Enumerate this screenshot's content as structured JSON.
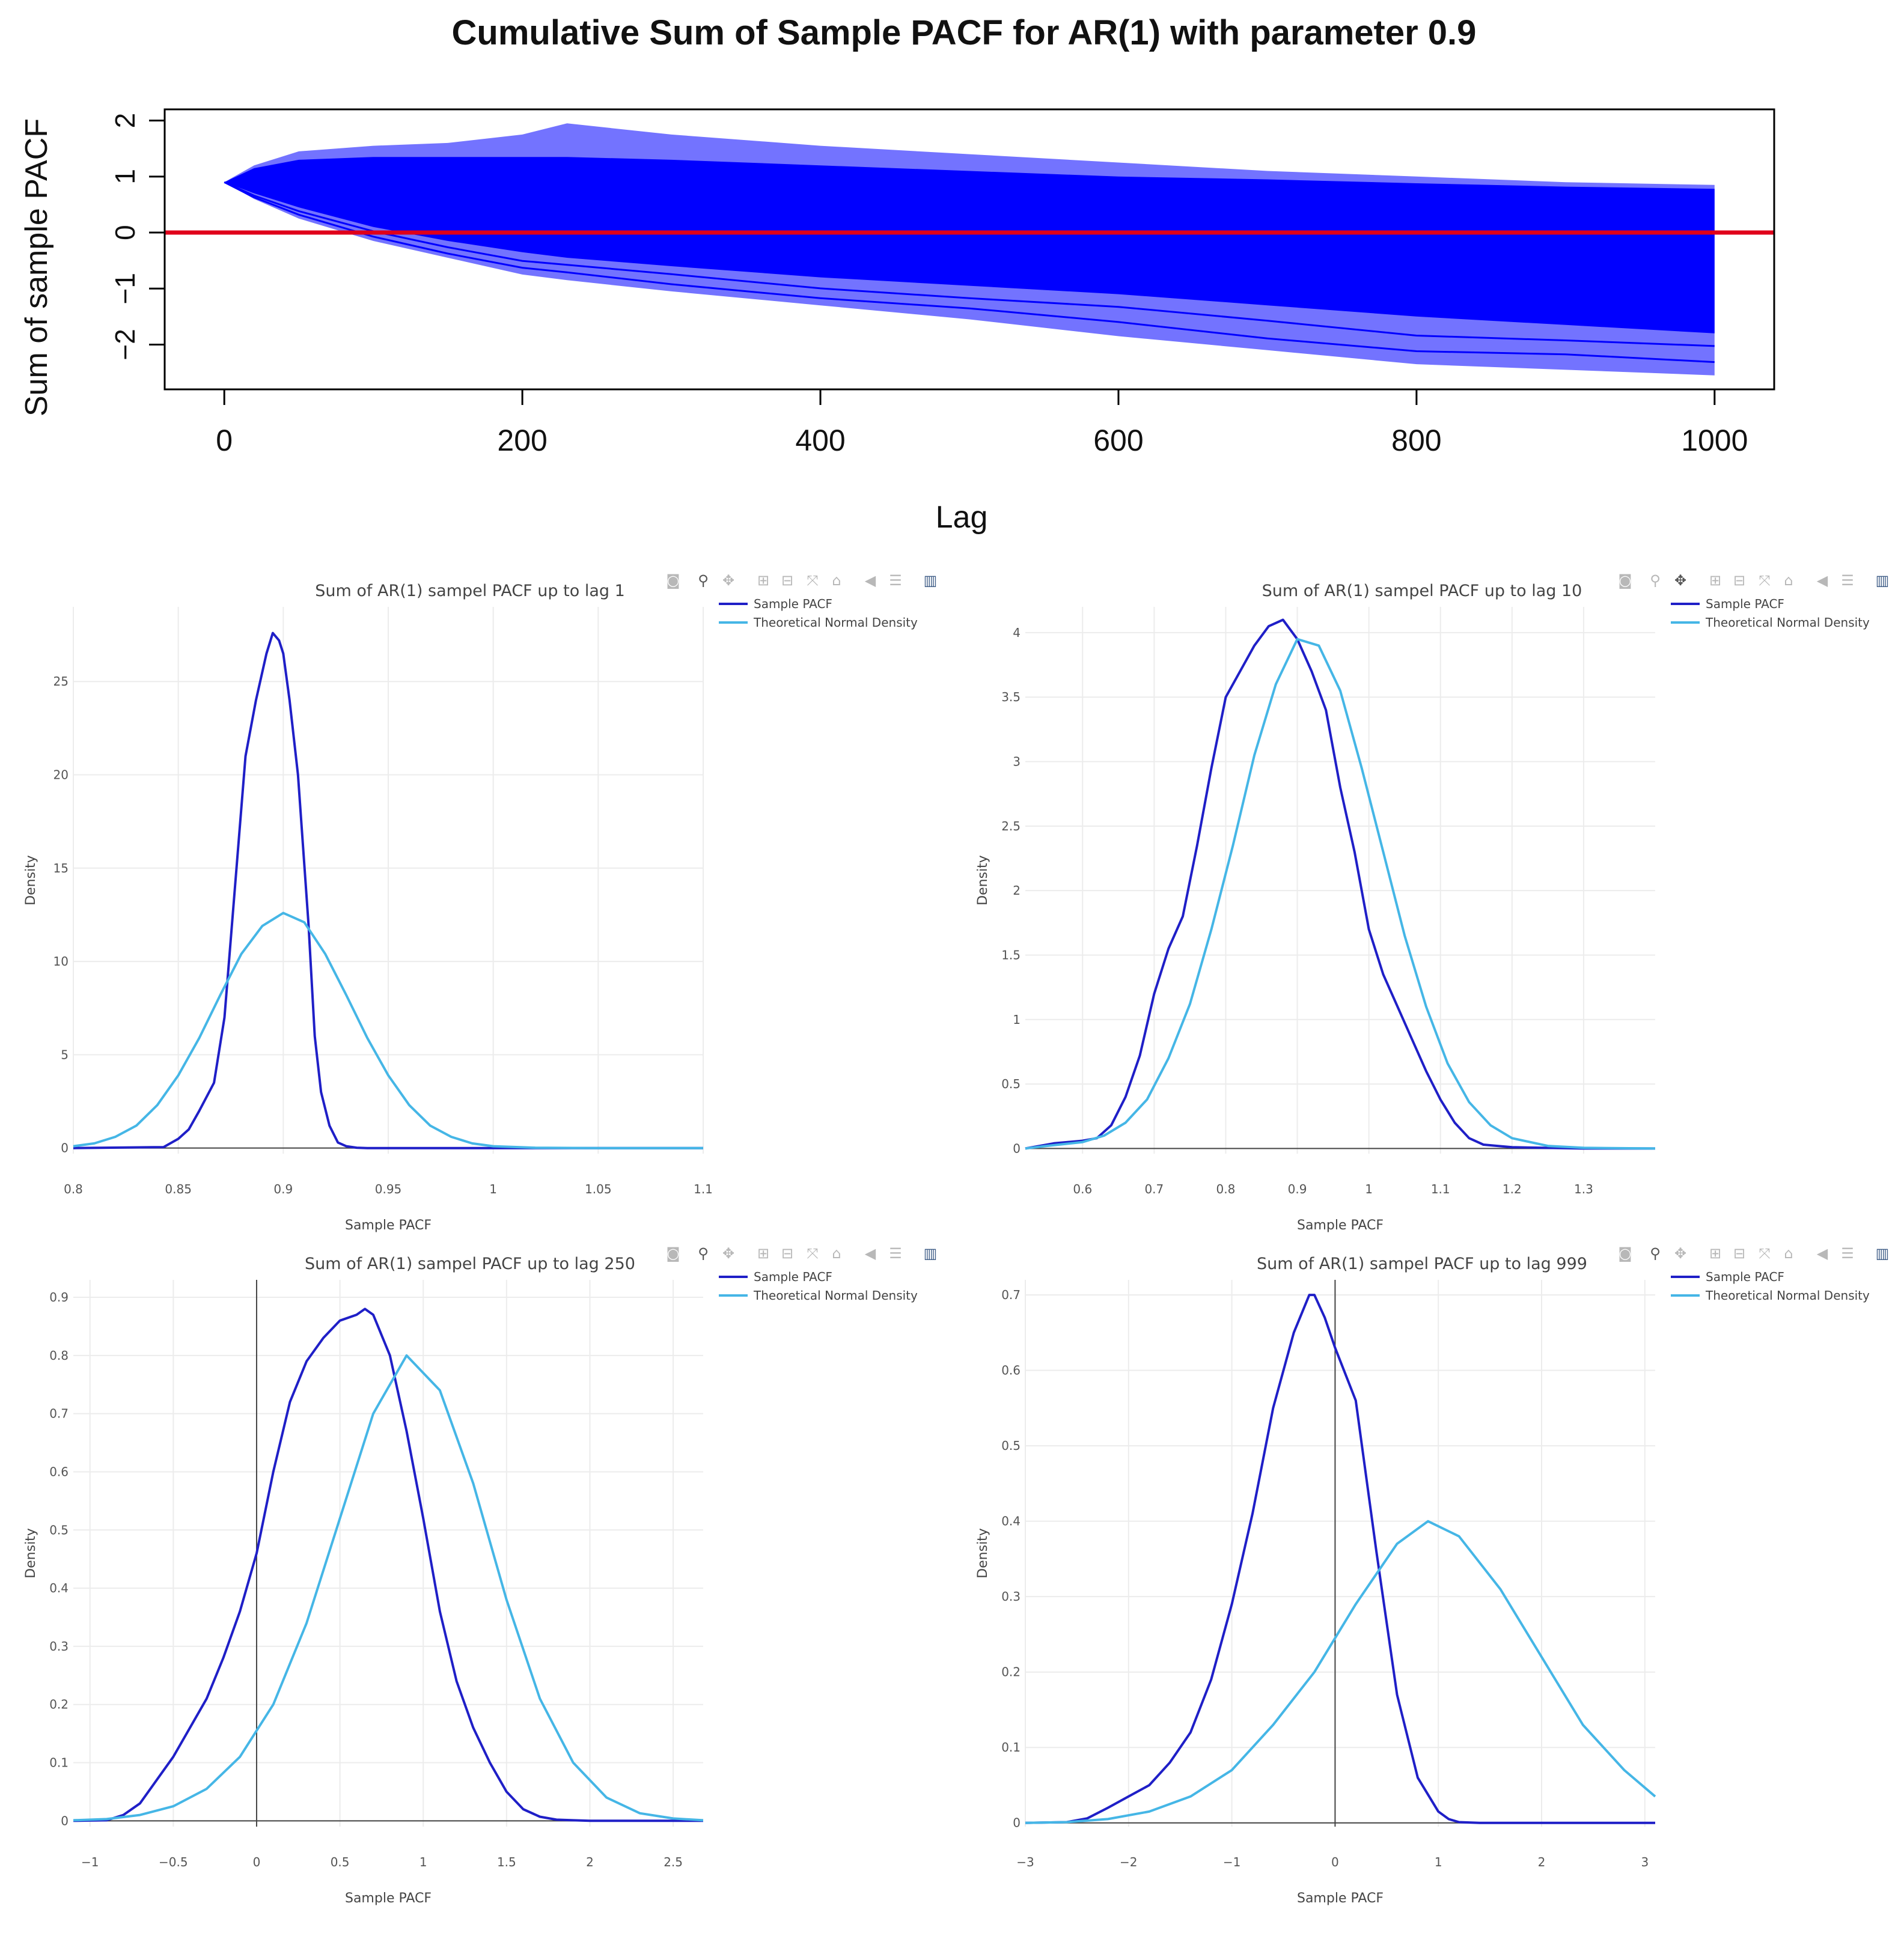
{
  "main": {
    "title": "Cumulative Sum of Sample PACF for AR(1) with parameter 0.9",
    "xlabel": "Lag",
    "ylabel": "Sum of sample PACF"
  },
  "colors": {
    "band": "#0000ff",
    "zero_line": "#e0001b",
    "sample": "#1f1fc7",
    "normal": "#45b6e6",
    "grid": "#ececec",
    "axis_text": "#555555"
  },
  "legend": {
    "sample": "Sample PACF",
    "normal": "Theoretical Normal Density"
  },
  "modebar_icons": [
    "camera-icon",
    "zoom-icon",
    "pan-icon",
    "zoom-in-icon",
    "zoom-out-icon",
    "autoscale-icon",
    "reset-axes-icon",
    "hover-closest-icon",
    "hover-compare-icon",
    "plotly-logo-icon"
  ],
  "chart_data": [
    {
      "type": "line",
      "title": "Cumulative Sum of Sample PACF for AR(1) with parameter 0.9",
      "xlabel": "Lag",
      "ylabel": "Sum of sample PACF",
      "x_ticks": [
        0,
        200,
        400,
        600,
        800,
        1000
      ],
      "y_ticks": [
        -2,
        -1,
        0,
        1,
        2
      ],
      "xlim": [
        -40,
        1040
      ],
      "ylim": [
        -2.8,
        2.2
      ],
      "reference_line_y": 0,
      "envelope": {
        "x": [
          0,
          20,
          50,
          100,
          150,
          200,
          230,
          300,
          400,
          500,
          600,
          700,
          800,
          900,
          1000
        ],
        "upper": [
          0.9,
          1.2,
          1.45,
          1.55,
          1.6,
          1.75,
          1.95,
          1.75,
          1.55,
          1.4,
          1.25,
          1.1,
          1.0,
          0.9,
          0.85
        ],
        "lower": [
          0.9,
          0.6,
          0.25,
          -0.15,
          -0.45,
          -0.75,
          -0.85,
          -1.05,
          -1.3,
          -1.55,
          -1.85,
          -2.1,
          -2.35,
          -2.45,
          -2.55
        ],
        "dense_upper": [
          0.9,
          1.15,
          1.3,
          1.35,
          1.35,
          1.35,
          1.35,
          1.3,
          1.2,
          1.1,
          1.0,
          0.95,
          0.88,
          0.82,
          0.78
        ],
        "dense_lower": [
          0.9,
          0.7,
          0.45,
          0.1,
          -0.15,
          -0.35,
          -0.45,
          -0.6,
          -0.8,
          -0.95,
          -1.1,
          -1.3,
          -1.5,
          -1.65,
          -1.8
        ]
      }
    },
    {
      "type": "line",
      "title": "Sum of AR(1) sampel PACF up to lag 1",
      "xlabel": "Sample PACF",
      "ylabel": "Density",
      "xlim": [
        0.8,
        1.1
      ],
      "ylim": [
        -0.3,
        29
      ],
      "x_ticks": [
        0.8,
        0.85,
        0.9,
        0.95,
        1,
        1.05,
        1.1
      ],
      "x_tick_labels": [
        "0.8",
        "0.85",
        "0.9",
        "0.95",
        "1",
        "1.05",
        "1.1"
      ],
      "y_ticks": [
        0,
        5,
        10,
        15,
        20,
        25
      ],
      "y_tick_labels": [
        "0",
        "5",
        "10",
        "15",
        "20",
        "25"
      ],
      "series": [
        {
          "name": "Sample PACF",
          "x": [
            0.8,
            0.843,
            0.85,
            0.855,
            0.86,
            0.867,
            0.872,
            0.877,
            0.882,
            0.887,
            0.892,
            0.895,
            0.898,
            0.9,
            0.903,
            0.907,
            0.912,
            0.915,
            0.918,
            0.922,
            0.926,
            0.93,
            0.935,
            0.94,
            1.1
          ],
          "y": [
            0,
            0.05,
            0.5,
            1.0,
            2.0,
            3.5,
            7,
            14,
            21,
            24,
            26.5,
            27.6,
            27.2,
            26.5,
            24,
            20,
            12,
            6,
            3.0,
            1.2,
            0.3,
            0.1,
            0.02,
            0,
            0
          ]
        },
        {
          "name": "Theoretical Normal Density",
          "x": [
            0.8,
            0.81,
            0.82,
            0.83,
            0.84,
            0.85,
            0.86,
            0.87,
            0.88,
            0.89,
            0.9,
            0.91,
            0.92,
            0.93,
            0.94,
            0.95,
            0.96,
            0.97,
            0.98,
            0.99,
            1.0,
            1.02,
            1.05,
            1.1
          ],
          "y": [
            0.1,
            0.25,
            0.6,
            1.2,
            2.3,
            3.9,
            5.9,
            8.2,
            10.4,
            11.9,
            12.6,
            12.1,
            10.4,
            8.2,
            5.9,
            3.9,
            2.3,
            1.2,
            0.6,
            0.25,
            0.1,
            0.02,
            0,
            0
          ]
        }
      ]
    },
    {
      "type": "line",
      "title": "Sum of AR(1) sampel PACF up to lag 10",
      "xlabel": "Sample PACF",
      "ylabel": "Density",
      "xlim": [
        0.52,
        1.4
      ],
      "ylim": [
        -0.04,
        4.2
      ],
      "x_ticks": [
        0.6,
        0.7,
        0.8,
        0.9,
        1,
        1.1,
        1.2,
        1.3
      ],
      "x_tick_labels": [
        "0.6",
        "0.7",
        "0.8",
        "0.9",
        "1",
        "1.1",
        "1.2",
        "1.3"
      ],
      "y_ticks": [
        0,
        0.5,
        1,
        1.5,
        2,
        2.5,
        3,
        3.5,
        4
      ],
      "y_tick_labels": [
        "0",
        "0.5",
        "1",
        "1.5",
        "2",
        "2.5",
        "3",
        "3.5",
        "4"
      ],
      "series": [
        {
          "name": "Sample PACF",
          "x": [
            0.52,
            0.56,
            0.6,
            0.62,
            0.64,
            0.66,
            0.68,
            0.7,
            0.72,
            0.74,
            0.76,
            0.78,
            0.8,
            0.82,
            0.84,
            0.86,
            0.88,
            0.9,
            0.92,
            0.94,
            0.96,
            0.98,
            1.0,
            1.02,
            1.04,
            1.06,
            1.08,
            1.1,
            1.12,
            1.14,
            1.16,
            1.2,
            1.3,
            1.4
          ],
          "y": [
            0,
            0.04,
            0.06,
            0.08,
            0.18,
            0.4,
            0.72,
            1.2,
            1.55,
            1.8,
            2.35,
            2.95,
            3.5,
            3.7,
            3.9,
            4.05,
            4.1,
            3.95,
            3.7,
            3.4,
            2.8,
            2.3,
            1.7,
            1.35,
            1.1,
            0.85,
            0.6,
            0.38,
            0.2,
            0.08,
            0.03,
            0.01,
            0,
            0
          ]
        },
        {
          "name": "Theoretical Normal Density",
          "x": [
            0.52,
            0.55,
            0.6,
            0.63,
            0.66,
            0.69,
            0.72,
            0.75,
            0.78,
            0.81,
            0.84,
            0.87,
            0.9,
            0.93,
            0.96,
            0.99,
            1.02,
            1.05,
            1.08,
            1.11,
            1.14,
            1.17,
            1.2,
            1.25,
            1.3,
            1.4
          ],
          "y": [
            0.0,
            0.02,
            0.05,
            0.1,
            0.2,
            0.38,
            0.7,
            1.12,
            1.7,
            2.35,
            3.05,
            3.6,
            3.95,
            3.9,
            3.55,
            2.95,
            2.3,
            1.65,
            1.1,
            0.66,
            0.36,
            0.18,
            0.08,
            0.02,
            0.005,
            0
          ]
        }
      ]
    },
    {
      "type": "line",
      "title": "Sum of AR(1) sampel PACF up to lag 250",
      "xlabel": "Sample PACF",
      "ylabel": "Density",
      "xlim": [
        -1.1,
        2.68
      ],
      "ylim": [
        -0.01,
        0.93
      ],
      "zero_line_x": 0,
      "x_ticks": [
        -1,
        -0.5,
        0,
        0.5,
        1,
        1.5,
        2,
        2.5
      ],
      "x_tick_labels": [
        "−1",
        "−0.5",
        "0",
        "0.5",
        "1",
        "1.5",
        "2",
        "2.5"
      ],
      "y_ticks": [
        0,
        0.1,
        0.2,
        0.3,
        0.4,
        0.5,
        0.6,
        0.7,
        0.8,
        0.9
      ],
      "y_tick_labels": [
        "0",
        "0.1",
        "0.2",
        "0.3",
        "0.4",
        "0.5",
        "0.6",
        "0.7",
        "0.8",
        "0.9"
      ],
      "series": [
        {
          "name": "Sample PACF",
          "x": [
            -1.1,
            -0.9,
            -0.8,
            -0.7,
            -0.6,
            -0.5,
            -0.4,
            -0.3,
            -0.2,
            -0.1,
            0,
            0.1,
            0.2,
            0.3,
            0.4,
            0.5,
            0.6,
            0.65,
            0.7,
            0.8,
            0.9,
            1.0,
            1.1,
            1.2,
            1.3,
            1.4,
            1.5,
            1.6,
            1.7,
            1.8,
            1.9,
            2.0,
            2.68
          ],
          "y": [
            0,
            0.001,
            0.01,
            0.03,
            0.07,
            0.11,
            0.16,
            0.21,
            0.28,
            0.36,
            0.46,
            0.6,
            0.72,
            0.79,
            0.83,
            0.86,
            0.87,
            0.88,
            0.87,
            0.8,
            0.67,
            0.52,
            0.36,
            0.24,
            0.16,
            0.1,
            0.05,
            0.02,
            0.007,
            0.002,
            0.001,
            0,
            0
          ]
        },
        {
          "name": "Theoretical Normal Density",
          "x": [
            -1.1,
            -0.9,
            -0.7,
            -0.5,
            -0.3,
            -0.1,
            0.1,
            0.3,
            0.5,
            0.7,
            0.9,
            1.1,
            1.3,
            1.5,
            1.7,
            1.9,
            2.1,
            2.3,
            2.5,
            2.68
          ],
          "y": [
            0.001,
            0.003,
            0.01,
            0.025,
            0.055,
            0.11,
            0.2,
            0.34,
            0.52,
            0.7,
            0.8,
            0.74,
            0.58,
            0.38,
            0.21,
            0.1,
            0.04,
            0.013,
            0.004,
            0.001
          ]
        }
      ]
    },
    {
      "type": "line",
      "title": "Sum of AR(1) sampel PACF up to lag 999",
      "xlabel": "Sample PACF",
      "ylabel": "Density",
      "xlim": [
        -3,
        3.1
      ],
      "ylim": [
        -0.005,
        0.72
      ],
      "zero_line_x": 0,
      "x_ticks": [
        -3,
        -2,
        -1,
        0,
        1,
        2,
        3
      ],
      "x_tick_labels": [
        "−3",
        "−2",
        "−1",
        "0",
        "1",
        "2",
        "3"
      ],
      "y_ticks": [
        0,
        0.1,
        0.2,
        0.3,
        0.4,
        0.5,
        0.6,
        0.7
      ],
      "y_tick_labels": [
        "0",
        "0.1",
        "0.2",
        "0.3",
        "0.4",
        "0.5",
        "0.6",
        "0.7"
      ],
      "series": [
        {
          "name": "Sample PACF",
          "x": [
            -3,
            -2.6,
            -2.4,
            -2.2,
            -2.0,
            -1.8,
            -1.6,
            -1.4,
            -1.2,
            -1.0,
            -0.8,
            -0.6,
            -0.4,
            -0.25,
            -0.2,
            -0.1,
            0,
            0.2,
            0.4,
            0.6,
            0.8,
            1.0,
            1.1,
            1.2,
            1.4,
            3.1
          ],
          "y": [
            0,
            0.001,
            0.006,
            0.02,
            0.035,
            0.05,
            0.08,
            0.12,
            0.19,
            0.29,
            0.41,
            0.55,
            0.65,
            0.7,
            0.7,
            0.67,
            0.63,
            0.56,
            0.36,
            0.17,
            0.06,
            0.015,
            0.005,
            0.001,
            0,
            0
          ]
        },
        {
          "name": "Theoretical Normal Density",
          "x": [
            -3,
            -2.6,
            -2.2,
            -1.8,
            -1.4,
            -1.0,
            -0.6,
            -0.2,
            0.2,
            0.6,
            0.9,
            1.2,
            1.6,
            2.0,
            2.4,
            2.8,
            3.1
          ],
          "y": [
            0.0,
            0.001,
            0.005,
            0.015,
            0.035,
            0.07,
            0.13,
            0.2,
            0.29,
            0.37,
            0.4,
            0.38,
            0.31,
            0.22,
            0.13,
            0.07,
            0.035
          ]
        }
      ]
    }
  ]
}
